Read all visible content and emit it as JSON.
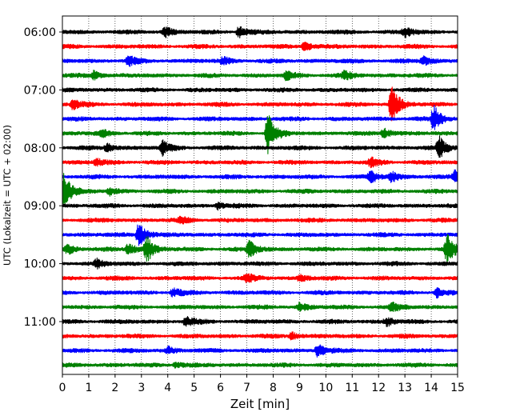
{
  "chart_data": {
    "type": "line",
    "chart_kind": "helicorder seismogram",
    "xlabel": "Zeit  [min]",
    "ylabel": "UTC (Lokalzeit = UTC + 02:00)",
    "xlim": [
      0,
      15
    ],
    "x_ticks": [
      0,
      1,
      2,
      3,
      4,
      5,
      6,
      7,
      8,
      9,
      10,
      11,
      12,
      13,
      14,
      15
    ],
    "x_tick_labels": [
      "0",
      "1",
      "2",
      "3",
      "4",
      "5",
      "6",
      "7",
      "8",
      "9",
      "10",
      "11",
      "12",
      "13",
      "14",
      "15"
    ],
    "vertical_grid": "dotted",
    "row_interval_minutes": 15,
    "color_cycle": [
      "#000000",
      "#ff0000",
      "#0000ff",
      "#008000"
    ],
    "y_tick_labels": [
      {
        "row": 0,
        "label": "06:00"
      },
      {
        "row": 4,
        "label": "07:00"
      },
      {
        "row": 8,
        "label": "08:00"
      },
      {
        "row": 12,
        "label": "09:00"
      },
      {
        "row": 16,
        "label": "10:00"
      },
      {
        "row": 20,
        "label": "11:00"
      }
    ],
    "series": [
      {
        "start": "06:00",
        "color": "#000000",
        "events": [
          {
            "t": 3.9,
            "amp": 0.35
          },
          {
            "t": 6.7,
            "amp": 0.4
          },
          {
            "t": 13.0,
            "amp": 0.4
          }
        ]
      },
      {
        "start": "06:15",
        "color": "#ff0000",
        "events": [
          {
            "t": 9.2,
            "amp": 0.35
          }
        ]
      },
      {
        "start": "06:30",
        "color": "#0000ff",
        "events": [
          {
            "t": 2.5,
            "amp": 0.35
          },
          {
            "t": 6.1,
            "amp": 0.25
          },
          {
            "t": 13.7,
            "amp": 0.3
          }
        ]
      },
      {
        "start": "06:45",
        "color": "#008000",
        "events": [
          {
            "t": 1.2,
            "amp": 0.3
          },
          {
            "t": 8.5,
            "amp": 0.3
          },
          {
            "t": 10.7,
            "amp": 0.3
          }
        ]
      },
      {
        "start": "07:00",
        "color": "#000000",
        "events": []
      },
      {
        "start": "07:15",
        "color": "#ff0000",
        "events": [
          {
            "t": 0.4,
            "amp": 0.35
          },
          {
            "t": 12.5,
            "amp": 1.3
          }
        ]
      },
      {
        "start": "07:30",
        "color": "#0000ff",
        "events": [
          {
            "t": 14.1,
            "amp": 0.9
          }
        ]
      },
      {
        "start": "07:45",
        "color": "#008000",
        "events": [
          {
            "t": 7.8,
            "amp": 1.4
          },
          {
            "t": 1.5,
            "amp": 0.25
          },
          {
            "t": 12.2,
            "amp": 0.35
          }
        ]
      },
      {
        "start": "08:00",
        "color": "#000000",
        "events": [
          {
            "t": 1.7,
            "amp": 0.3
          },
          {
            "t": 3.8,
            "amp": 0.45
          },
          {
            "t": 14.3,
            "amp": 0.75
          }
        ]
      },
      {
        "start": "08:15",
        "color": "#ff0000",
        "events": [
          {
            "t": 1.3,
            "amp": 0.25
          },
          {
            "t": 11.7,
            "amp": 0.3
          }
        ]
      },
      {
        "start": "08:30",
        "color": "#0000ff",
        "events": [
          {
            "t": 11.7,
            "amp": 0.4
          },
          {
            "t": 12.5,
            "amp": 0.35
          },
          {
            "t": 14.9,
            "amp": 0.5
          }
        ]
      },
      {
        "start": "08:45",
        "color": "#008000",
        "events": [
          {
            "t": 0.05,
            "amp": 1.3
          },
          {
            "t": 1.8,
            "amp": 0.25
          }
        ]
      },
      {
        "start": "09:00",
        "color": "#000000",
        "events": [
          {
            "t": 5.9,
            "amp": 0.25
          }
        ]
      },
      {
        "start": "09:15",
        "color": "#ff0000",
        "events": [
          {
            "t": 4.5,
            "amp": 0.2
          }
        ]
      },
      {
        "start": "09:30",
        "color": "#0000ff",
        "events": [
          {
            "t": 2.9,
            "amp": 0.9
          }
        ]
      },
      {
        "start": "09:45",
        "color": "#008000",
        "events": [
          {
            "t": 0.2,
            "amp": 0.35
          },
          {
            "t": 2.5,
            "amp": 0.45
          },
          {
            "t": 3.2,
            "amp": 0.9
          },
          {
            "t": 7.1,
            "amp": 0.55
          },
          {
            "t": 14.6,
            "amp": 1.0
          }
        ]
      },
      {
        "start": "10:00",
        "color": "#000000",
        "events": [
          {
            "t": 1.3,
            "amp": 0.3
          }
        ]
      },
      {
        "start": "10:15",
        "color": "#ff0000",
        "events": [
          {
            "t": 7.0,
            "amp": 0.3
          },
          {
            "t": 9.0,
            "amp": 0.25
          }
        ]
      },
      {
        "start": "10:30",
        "color": "#0000ff",
        "events": [
          {
            "t": 4.2,
            "amp": 0.3
          },
          {
            "t": 14.2,
            "amp": 0.35
          }
        ]
      },
      {
        "start": "10:45",
        "color": "#008000",
        "events": [
          {
            "t": 9.0,
            "amp": 0.3
          },
          {
            "t": 12.5,
            "amp": 0.3
          }
        ]
      },
      {
        "start": "11:00",
        "color": "#000000",
        "events": [
          {
            "t": 4.7,
            "amp": 0.35
          },
          {
            "t": 12.3,
            "amp": 0.3
          }
        ]
      },
      {
        "start": "11:15",
        "color": "#ff0000",
        "events": [
          {
            "t": 8.7,
            "amp": 0.25
          }
        ]
      },
      {
        "start": "11:30",
        "color": "#0000ff",
        "events": [
          {
            "t": 9.7,
            "amp": 0.5
          },
          {
            "t": 4.0,
            "amp": 0.25
          }
        ]
      },
      {
        "start": "11:45",
        "color": "#008000",
        "events": [
          {
            "t": 4.3,
            "amp": 0.2
          }
        ]
      }
    ]
  }
}
